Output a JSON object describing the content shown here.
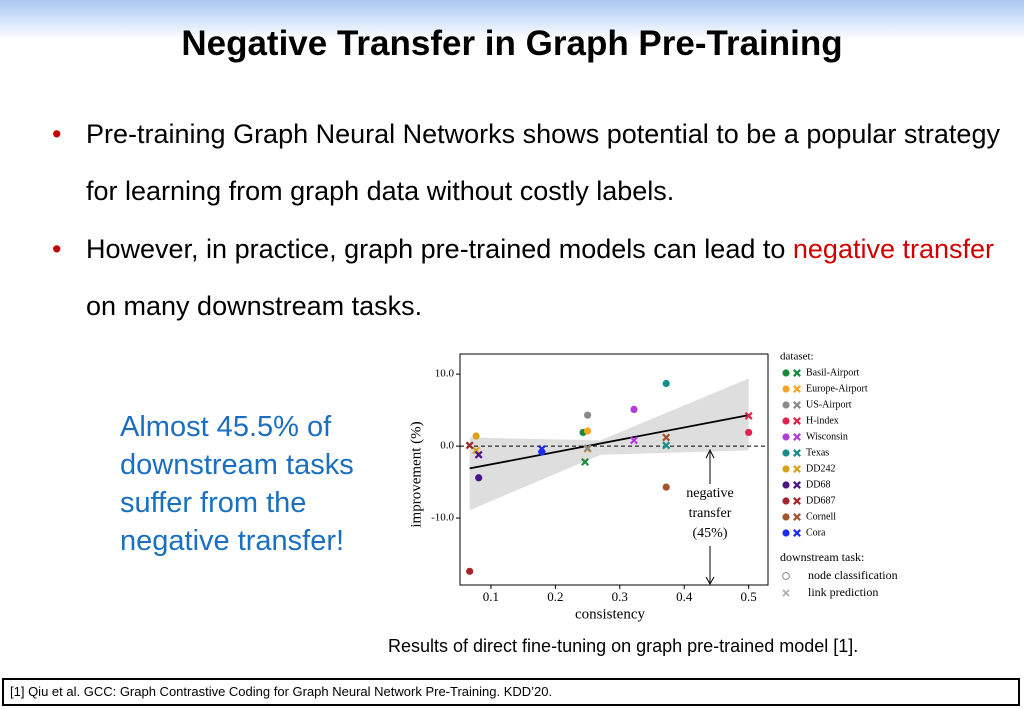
{
  "slide": {
    "title": "Negative Transfer in Graph Pre-Training",
    "bullets": [
      {
        "text": "Pre-training Graph Neural Networks shows potential to be a popular strategy for learning from graph data without costly labels."
      },
      {
        "before": "However, in practice, graph pre-trained models can lead to ",
        "highlight": "negative transfer",
        "after": " on many downstream tasks."
      }
    ],
    "callout": "Almost 45.5% of downstream tasks suffer from the negative transfer!",
    "caption": "Results of direct fine-tuning on graph pre-trained model [1].",
    "footnote": "[1] Qiu et al. GCC: Graph Contrastive Coding for Graph Neural Network Pre-Training. KDD’20."
  },
  "chart_data": {
    "type": "scatter",
    "x_label": "consistency",
    "y_label": "improvement (%)",
    "xlim": [
      0.052,
      0.53
    ],
    "ylim": [
      -19.3,
      12.8
    ],
    "xticks": [
      0.1,
      0.2,
      0.3,
      0.4,
      0.5
    ],
    "yticks": [
      {
        "value": 10,
        "label": "10.0"
      },
      {
        "value": 0,
        "label": "0.0"
      },
      {
        "value": -10,
        "label": "-10.0"
      }
    ],
    "reference_line": 0,
    "fit_line": {
      "x": [
        0.067,
        0.5
      ],
      "y": [
        -3.1,
        4.3
      ]
    },
    "band": {
      "x": [
        0.067,
        0.27,
        0.5
      ],
      "lower": [
        -8.9,
        -1.2,
        -0.6
      ],
      "upper": [
        1.2,
        0.8,
        9.4
      ]
    },
    "legend_title": "dataset:",
    "task_legend": {
      "title": "downstream task:",
      "items": [
        {
          "label": "node classification",
          "marker": "o"
        },
        {
          "label": "link prediction",
          "marker": "x"
        }
      ]
    },
    "series": [
      {
        "name": "Basil-Airport",
        "color": "#1a8a3a",
        "x": [
          0.243,
          0.246
        ],
        "values": [
          1.9,
          -2.2
        ]
      },
      {
        "name": "Europe-Airport",
        "color": "#f5a623",
        "x": [
          0.25,
          0.25
        ],
        "values": [
          2.1,
          -0.4
        ]
      },
      {
        "name": "US-Airport",
        "color": "#8a8a8a",
        "x": [
          0.25,
          0.25
        ],
        "values": [
          4.3,
          -0.3
        ]
      },
      {
        "name": "H-index",
        "color": "#e0224b",
        "x": [
          0.5,
          0.5
        ],
        "values": [
          1.9,
          4.2
        ]
      },
      {
        "name": "Wisconsin",
        "color": "#b13fd6",
        "x": [
          0.322,
          0.322
        ],
        "values": [
          5.1,
          0.8
        ]
      },
      {
        "name": "Texas",
        "color": "#158f88",
        "x": [
          0.372,
          0.372
        ],
        "values": [
          8.7,
          0.1
        ]
      },
      {
        "name": "DD242",
        "color": "#d9a21b",
        "x": [
          0.077,
          0.077
        ],
        "values": [
          1.4,
          -0.6
        ]
      },
      {
        "name": "DD68",
        "color": "#4a1584",
        "x": [
          0.081,
          0.081
        ],
        "values": [
          -4.4,
          -1.2
        ]
      },
      {
        "name": "DD687",
        "color": "#a3262b",
        "x": [
          0.067,
          0.067
        ],
        "values": [
          -17.4,
          0.1
        ]
      },
      {
        "name": "Cornell",
        "color": "#a0542d",
        "x": [
          0.372,
          0.372
        ],
        "values": [
          -5.7,
          1.2
        ]
      },
      {
        "name": "Cora",
        "color": "#1c2cf0",
        "x": [
          0.179,
          0.179
        ],
        "values": [
          -0.8,
          -0.4
        ]
      }
    ],
    "annotation": {
      "lines": [
        "negative",
        "transfer",
        "(45%)"
      ]
    }
  }
}
